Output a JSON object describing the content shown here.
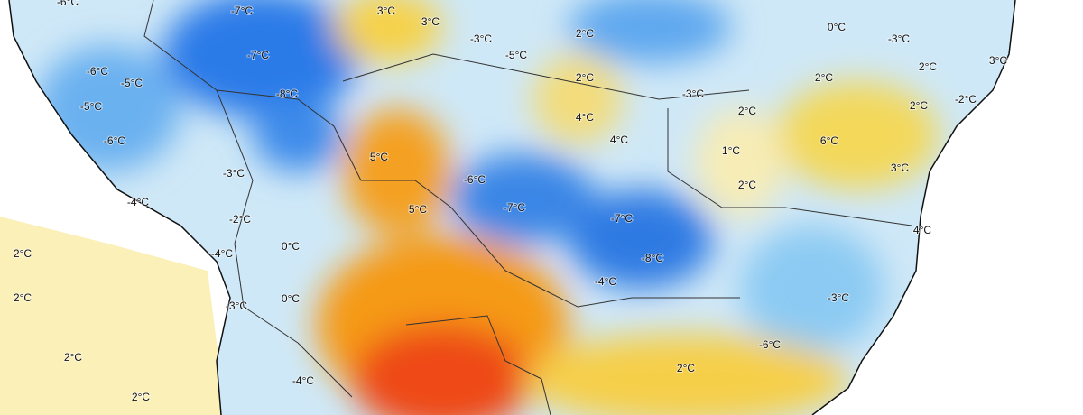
{
  "labels": [
    "-6°C",
    "-7°C",
    "3°C",
    "3°C",
    "-7°C",
    "-3°C",
    "2°C",
    "0°C",
    "-3°C",
    "-5°C",
    "-6°C",
    "-5°C",
    "2°C",
    "-8°C",
    "-3°C",
    "2°C",
    "2°C",
    "3°C",
    "-5°C",
    "4°C",
    "2°C",
    "2°C",
    "-2°C",
    "-6°C",
    "4°C",
    "1°C",
    "6°C",
    "5°C",
    "-3°C",
    "3°C",
    "-6°C",
    "2°C",
    "-4°C",
    "5°C",
    "-7°C",
    "-2°C",
    "-7°C",
    "4°C",
    "2°C",
    "0°C",
    "-4°C",
    "-8°C",
    "2°C",
    "-4°C",
    "0°C",
    "-3°C",
    "-3°C",
    "2°C",
    "-6°C",
    "2°C",
    "2°C",
    "-4°C"
  ]
}
